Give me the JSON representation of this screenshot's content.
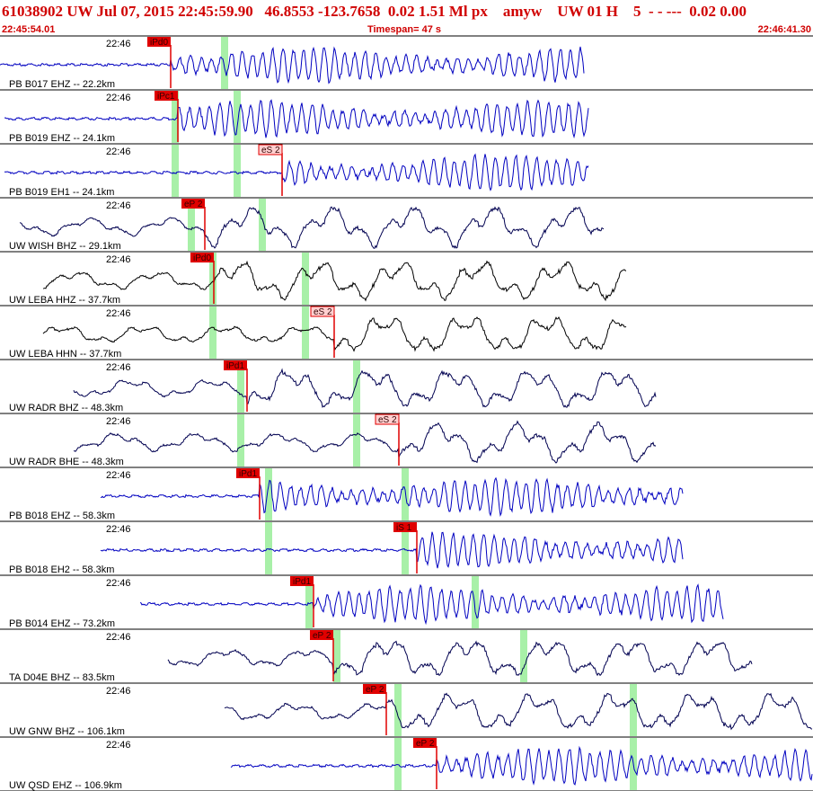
{
  "header": {
    "event": "61038902 UW Jul 07, 2015 22:45:59.90   46.8553 -123.7658  0.02 1.51 Ml px    amyw    UW 01 H    5  - - ---  0.02 0.00",
    "start": "22:45:54.01",
    "timespan": "Timespan=  47 s",
    "end": "22:46:41.30"
  },
  "traces": [
    {
      "label": "PB B017 EHZ -- 22.2km",
      "time": "22:46",
      "pick": "iPd0"
    },
    {
      "label": "PB B019 EHZ -- 24.1km",
      "time": "22:46",
      "pick": "iPc1"
    },
    {
      "label": "PB B019 EH1 -- 24.1km",
      "time": "22:46",
      "pick": "eS 2"
    },
    {
      "label": "UW WISH BHZ -- 29.1km",
      "time": "22:46",
      "pick": "eP 2"
    },
    {
      "label": "UW LEBA HHZ -- 37.7km",
      "time": "22:46",
      "pick": "iPd0"
    },
    {
      "label": "UW LEBA HHN -- 37.7km",
      "time": "22:46",
      "pick": "eS 2"
    },
    {
      "label": "UW RADR BHZ -- 48.3km",
      "time": "22:46",
      "pick": "iPd1"
    },
    {
      "label": "UW RADR BHE -- 48.3km",
      "time": "22:46",
      "pick": "eS 2"
    },
    {
      "label": "PB B018 EHZ -- 58.3km",
      "time": "22:46",
      "pick": "iPd1"
    },
    {
      "label": "PB B018 EH2 -- 58.3km",
      "time": "22:46",
      "pick": "iS 1"
    },
    {
      "label": "PB B014 EHZ -- 73.2km",
      "time": "22:46",
      "pick": "iPd1"
    },
    {
      "label": "TA D04E BHZ -- 83.5km",
      "time": "22:46",
      "pick": "eP 2"
    },
    {
      "label": "UW GNW BHZ -- 106.1km",
      "time": "22:46",
      "pick": "eP 2"
    },
    {
      "label": "UW QSD EHZ -- 106.9km",
      "time": "22:46",
      "pick": "eP 2"
    }
  ]
}
